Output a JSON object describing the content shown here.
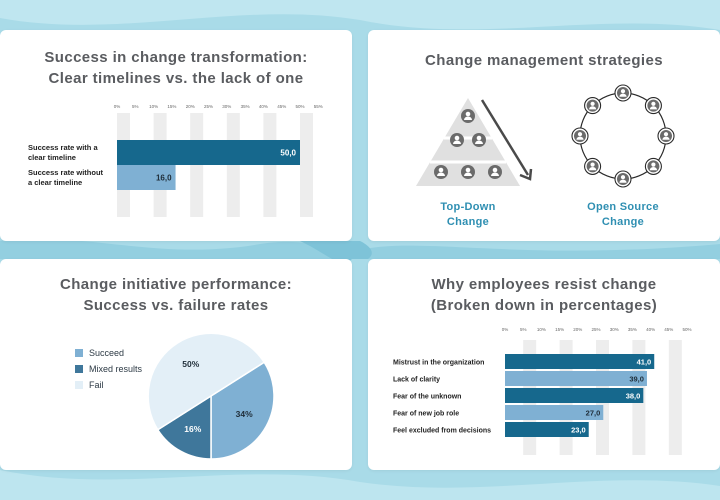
{
  "colors": {
    "dark_blue": "#16688d",
    "mid_blue": "#7fb0d3",
    "light_blue": "#e3eff7",
    "pie_mid": "#3f779b",
    "track": "#ededed",
    "title": "#5a5c60",
    "accent": "#2f8fb2",
    "icon_gray": "#6b6b6b"
  },
  "card1": {
    "title_line1": "Success in change transformation:",
    "title_line2": "Clear timelines vs. the lack of one"
  },
  "card2": {
    "title": "Change management strategies",
    "topdown_line1": "Top-Down",
    "topdown_line2": "Change",
    "open_line1": "Open Source",
    "open_line2": "Change"
  },
  "card3": {
    "title_line1": "Change initiative performance:",
    "title_line2": "Success vs. failure rates"
  },
  "card4": {
    "title_line1": "Why employees resist change",
    "title_line2": "(Broken down in percentages)"
  },
  "chart_data": [
    {
      "type": "bar",
      "orientation": "horizontal",
      "title": "Success in change transformation: Clear timelines vs. the lack of one",
      "categories": [
        "Success rate with a clear timeline",
        "Success rate without a clear timeline"
      ],
      "category_lines": [
        [
          "Success rate with a",
          "clear timeline"
        ],
        [
          "Success rate without",
          "a clear timeline"
        ]
      ],
      "values": [
        50,
        16
      ],
      "value_labels": [
        "50,0",
        "16,0"
      ],
      "ticks": [
        "0%",
        "5%",
        "10%",
        "15%",
        "20%",
        "25%",
        "30%",
        "35%",
        "40%",
        "45%",
        "50%",
        "55%"
      ],
      "xlim": [
        0,
        55
      ]
    },
    {
      "type": "pie",
      "title": "Change initiative performance: Success vs. failure rates",
      "labels": [
        "Succeed",
        "Mixed results",
        "Fail"
      ],
      "values": [
        34,
        16,
        50
      ],
      "value_labels": [
        "34%",
        "16%",
        "50%"
      ],
      "legend": "left"
    },
    {
      "type": "bar",
      "orientation": "horizontal",
      "title": "Why employees resist change (Broken down in percentages)",
      "categories": [
        "Mistrust in the organization",
        "Lack of clarity",
        "Fear of the unknown",
        "Fear of new job role",
        "Feel excluded from decisions"
      ],
      "values": [
        41,
        39,
        38,
        27,
        23
      ],
      "value_labels": [
        "41,0",
        "39,0",
        "38,0",
        "27,0",
        "23,0"
      ],
      "ticks": [
        "0%",
        "5%",
        "10%",
        "15%",
        "20%",
        "25%",
        "30%",
        "35%",
        "40%",
        "45%",
        "50%"
      ],
      "xlim": [
        0,
        50
      ]
    }
  ]
}
